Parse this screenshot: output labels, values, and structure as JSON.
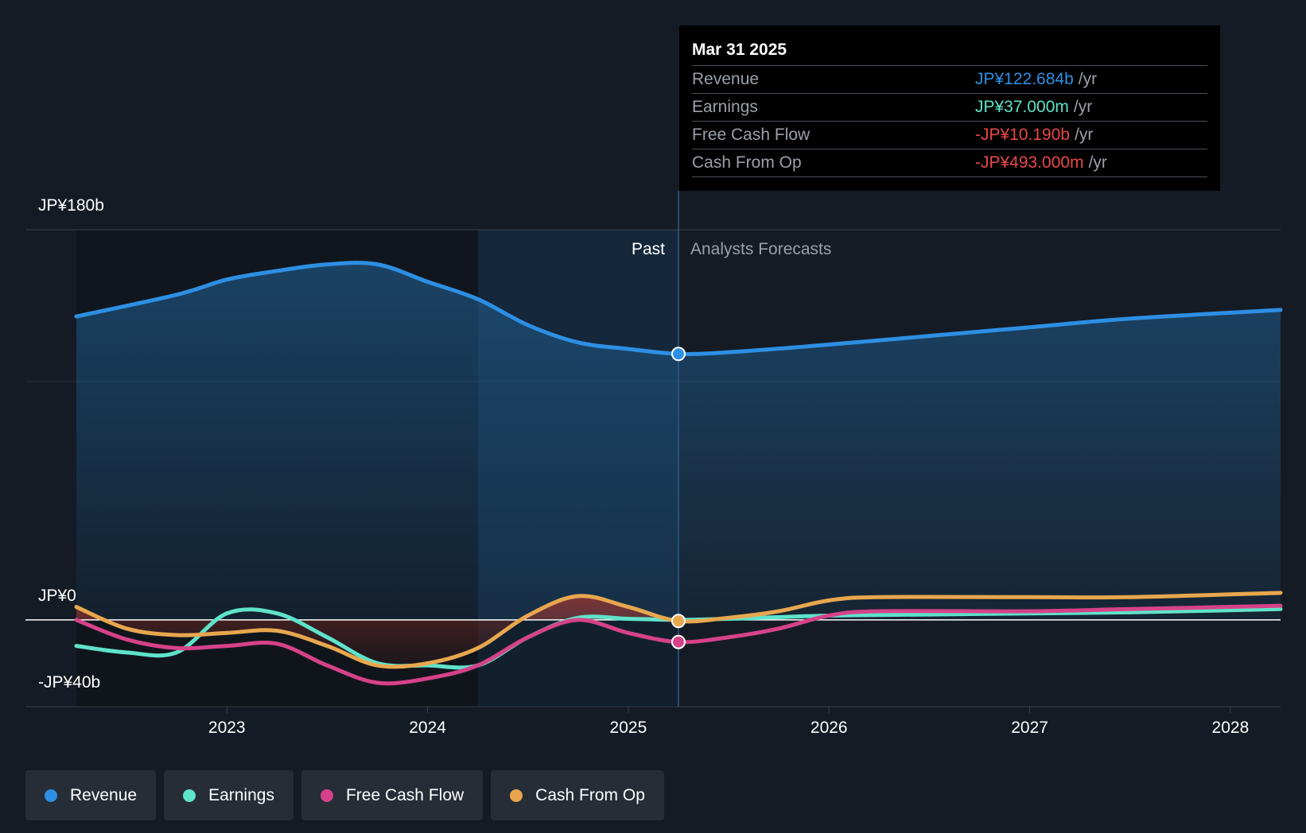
{
  "chart_data": {
    "type": "line",
    "y_axis": {
      "labels": [
        "JP¥180b",
        "JP¥0",
        "-JP¥40b"
      ],
      "ylim": [
        -40,
        180
      ],
      "unit": "JP¥ billions"
    },
    "x_axis": {
      "tick_labels": [
        "2023",
        "2024",
        "2025",
        "2026",
        "2027",
        "2028"
      ],
      "xlim": [
        2022.25,
        2028.25
      ]
    },
    "divider": {
      "date": 2025.25,
      "past_label": "Past",
      "forecast_label": "Analysts Forecasts"
    },
    "series": [
      {
        "name": "Revenue",
        "color": "#2d8fe3",
        "points": [
          [
            2022.25,
            140
          ],
          [
            2022.75,
            150
          ],
          [
            2023.0,
            157
          ],
          [
            2023.25,
            161
          ],
          [
            2023.5,
            164
          ],
          [
            2023.75,
            164
          ],
          [
            2024.0,
            156
          ],
          [
            2024.25,
            148
          ],
          [
            2024.5,
            136
          ],
          [
            2024.75,
            128
          ],
          [
            2025.0,
            125
          ],
          [
            2025.25,
            122.7
          ],
          [
            2025.5,
            123.5
          ],
          [
            2026.0,
            127
          ],
          [
            2026.5,
            131
          ],
          [
            2027.0,
            135
          ],
          [
            2027.5,
            139
          ],
          [
            2028.25,
            143
          ]
        ]
      },
      {
        "name": "Earnings",
        "color": "#5fe3cb",
        "points": [
          [
            2022.25,
            -12
          ],
          [
            2022.5,
            -15
          ],
          [
            2022.75,
            -15
          ],
          [
            2023.0,
            3
          ],
          [
            2023.25,
            3
          ],
          [
            2023.5,
            -8
          ],
          [
            2023.75,
            -20
          ],
          [
            2024.0,
            -21
          ],
          [
            2024.25,
            -21
          ],
          [
            2024.5,
            -8
          ],
          [
            2024.75,
            1
          ],
          [
            2025.0,
            0.5
          ],
          [
            2025.25,
            0.037
          ],
          [
            2025.5,
            0.5
          ],
          [
            2026.0,
            2
          ],
          [
            2026.5,
            2.5
          ],
          [
            2027.0,
            3
          ],
          [
            2027.5,
            3.5
          ],
          [
            2028.25,
            5
          ]
        ]
      },
      {
        "name": "Free Cash Flow",
        "color": "#d6428a",
        "points": [
          [
            2022.25,
            0
          ],
          [
            2022.5,
            -9
          ],
          [
            2022.75,
            -13
          ],
          [
            2023.0,
            -12
          ],
          [
            2023.25,
            -11
          ],
          [
            2023.5,
            -21
          ],
          [
            2023.75,
            -29
          ],
          [
            2024.0,
            -27
          ],
          [
            2024.25,
            -21
          ],
          [
            2024.5,
            -8
          ],
          [
            2024.75,
            0
          ],
          [
            2025.0,
            -6
          ],
          [
            2025.25,
            -10.19
          ],
          [
            2025.5,
            -8
          ],
          [
            2025.75,
            -4
          ],
          [
            2026.0,
            2
          ],
          [
            2026.25,
            4
          ],
          [
            2027.0,
            4
          ],
          [
            2027.5,
            5
          ],
          [
            2028.25,
            6.5
          ]
        ]
      },
      {
        "name": "Cash From Op",
        "color": "#e8a74e",
        "points": [
          [
            2022.25,
            6
          ],
          [
            2022.5,
            -4
          ],
          [
            2022.75,
            -7
          ],
          [
            2023.0,
            -6
          ],
          [
            2023.25,
            -5
          ],
          [
            2023.5,
            -12
          ],
          [
            2023.75,
            -21
          ],
          [
            2024.0,
            -20
          ],
          [
            2024.25,
            -13
          ],
          [
            2024.5,
            2
          ],
          [
            2024.75,
            11
          ],
          [
            2025.0,
            6
          ],
          [
            2025.25,
            -0.493
          ],
          [
            2025.5,
            1
          ],
          [
            2025.75,
            4
          ],
          [
            2026.0,
            9
          ],
          [
            2026.25,
            10.5
          ],
          [
            2027.0,
            10.5
          ],
          [
            2027.5,
            10.5
          ],
          [
            2028.25,
            12.5
          ]
        ]
      }
    ],
    "highlight_date": 2025.25
  },
  "tooltip": {
    "date": "Mar 31 2025",
    "rows": [
      {
        "label": "Revenue",
        "value": "JP¥122.684b",
        "unit": "/yr",
        "color": "#2d8fe3"
      },
      {
        "label": "Earnings",
        "value": "JP¥37.000m",
        "unit": "/yr",
        "color": "#5fe3cb"
      },
      {
        "label": "Free Cash Flow",
        "value": "-JP¥10.190b",
        "unit": "/yr",
        "color": "#e84848"
      },
      {
        "label": "Cash From Op",
        "value": "-JP¥493.000m",
        "unit": "/yr",
        "color": "#e84848"
      }
    ]
  },
  "legend": [
    {
      "label": "Revenue",
      "color": "#2d8fe3"
    },
    {
      "label": "Earnings",
      "color": "#5fe3cb"
    },
    {
      "label": "Free Cash Flow",
      "color": "#d6428a"
    },
    {
      "label": "Cash From Op",
      "color": "#e8a74e"
    }
  ]
}
